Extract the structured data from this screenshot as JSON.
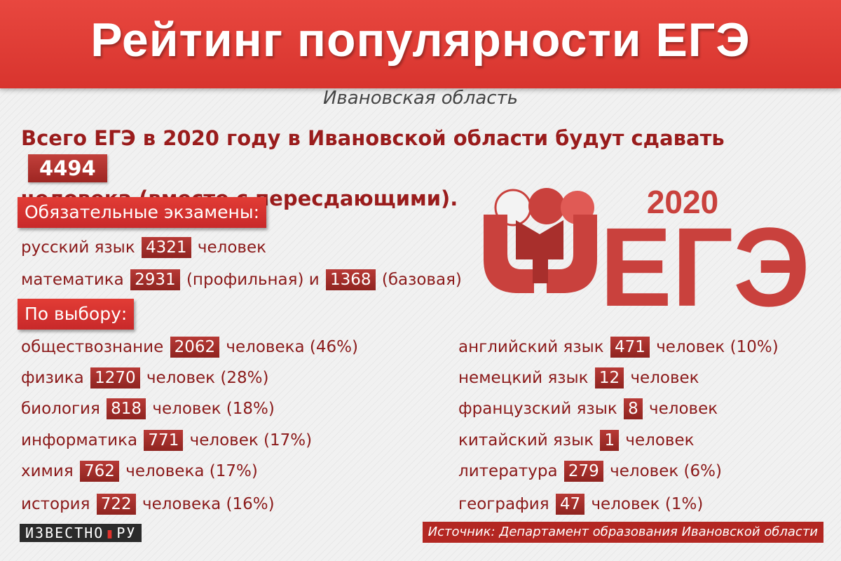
{
  "header": {
    "title": "Рейтинг популярности ЕГЭ"
  },
  "subtitle": "Ивановская область",
  "intro": {
    "text_before": "Всего ЕГЭ в 2020 году в Ивановской области будут сдавать",
    "total": "4494",
    "text_after": "человека (вместе с пересдающими)."
  },
  "mandatory": {
    "label": "Обязательные экзамены:",
    "russian": {
      "name": "русский язык",
      "count": "4321",
      "suffix": "человек"
    },
    "math": {
      "name": "математика",
      "count1": "2931",
      "label1": "(профильная) и",
      "count2": "1368",
      "label2": "(базовая)"
    }
  },
  "optional": {
    "label": "По выбору:",
    "left": [
      {
        "name": "обществознание",
        "count": "2062",
        "suffix": "человека (46%)"
      },
      {
        "name": "физика",
        "count": "1270",
        "suffix": "человек (28%)"
      },
      {
        "name": "биология",
        "count": "818",
        "suffix": "человек (18%)"
      },
      {
        "name": "информатика",
        "count": "771",
        "suffix": "человек (17%)"
      },
      {
        "name": "химия",
        "count": "762",
        "suffix": "человека (17%)"
      },
      {
        "name": "история",
        "count": "722",
        "suffix": "человека (16%)"
      }
    ],
    "right": [
      {
        "name": "английский язык",
        "count": "471",
        "suffix": "человек (10%)"
      },
      {
        "name": "немецкий язык",
        "count": "12",
        "suffix": "человек"
      },
      {
        "name": "французский язык",
        "count": "8",
        "suffix": "человек"
      },
      {
        "name": "китайский язык",
        "count": "1",
        "suffix": "человек"
      },
      {
        "name": "литература",
        "count": "279",
        "suffix": "человек (6%)"
      },
      {
        "name": "география",
        "count": "47",
        "suffix": "человек (1%)"
      }
    ]
  },
  "logo": {
    "year": "2020",
    "text": "ЕГЭ"
  },
  "source": "Источник: Департамент образования Ивановской области",
  "brand": {
    "left": "ИЗВЕСТНО",
    "right": "РУ"
  },
  "colors": {
    "header_red": "#e0392f",
    "dark_red": "#9a1c1c",
    "logo_red": "#c9413d"
  }
}
